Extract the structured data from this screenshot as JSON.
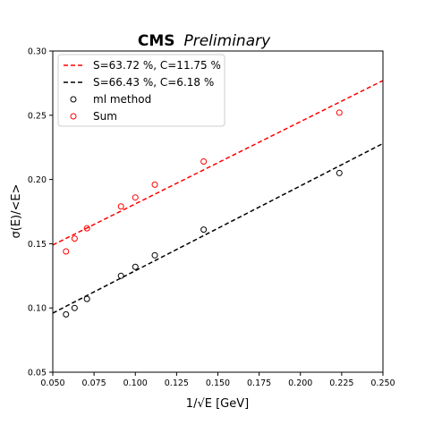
{
  "chart_data": {
    "type": "scatter",
    "title": {
      "bold": "CMS",
      "italic": "Preliminary"
    },
    "xlabel": "1/√E [GeV]",
    "ylabel": "σ(E)/<E>",
    "xlim": [
      0.05,
      0.25
    ],
    "ylim": [
      0.05,
      0.3
    ],
    "x_ticks": [
      "0.050",
      "0.075",
      "0.100",
      "0.125",
      "0.150",
      "0.175",
      "0.200",
      "0.225",
      "0.250"
    ],
    "y_ticks": [
      "0.05",
      "0.10",
      "0.15",
      "0.20",
      "0.25",
      "0.30"
    ],
    "grid": false,
    "legend_position": "top-left",
    "fits": [
      {
        "label": "S=63.72 %, C=11.75 %",
        "color": "#ff0000",
        "style": "dashed",
        "x": [
          0.05,
          0.25
        ],
        "y": [
          0.149,
          0.277
        ]
      },
      {
        "label": "S=66.43 %, C=6.18 %",
        "color": "#000000",
        "style": "dashed",
        "x": [
          0.05,
          0.25
        ],
        "y": [
          0.096,
          0.228
        ]
      }
    ],
    "series": [
      {
        "name": "ml method",
        "color": "#000000",
        "marker": "open-circle",
        "x": [
          0.058,
          0.0632,
          0.0707,
          0.0913,
          0.1,
          0.1118,
          0.1414,
          0.2236
        ],
        "y": [
          0.095,
          0.1,
          0.107,
          0.125,
          0.132,
          0.141,
          0.161,
          0.205
        ]
      },
      {
        "name": "Sum",
        "color": "#ff0000",
        "marker": "open-circle",
        "x": [
          0.058,
          0.0632,
          0.0707,
          0.0913,
          0.1,
          0.1118,
          0.1414,
          0.2236
        ],
        "y": [
          0.144,
          0.154,
          0.162,
          0.179,
          0.186,
          0.196,
          0.214,
          0.252
        ]
      }
    ]
  }
}
